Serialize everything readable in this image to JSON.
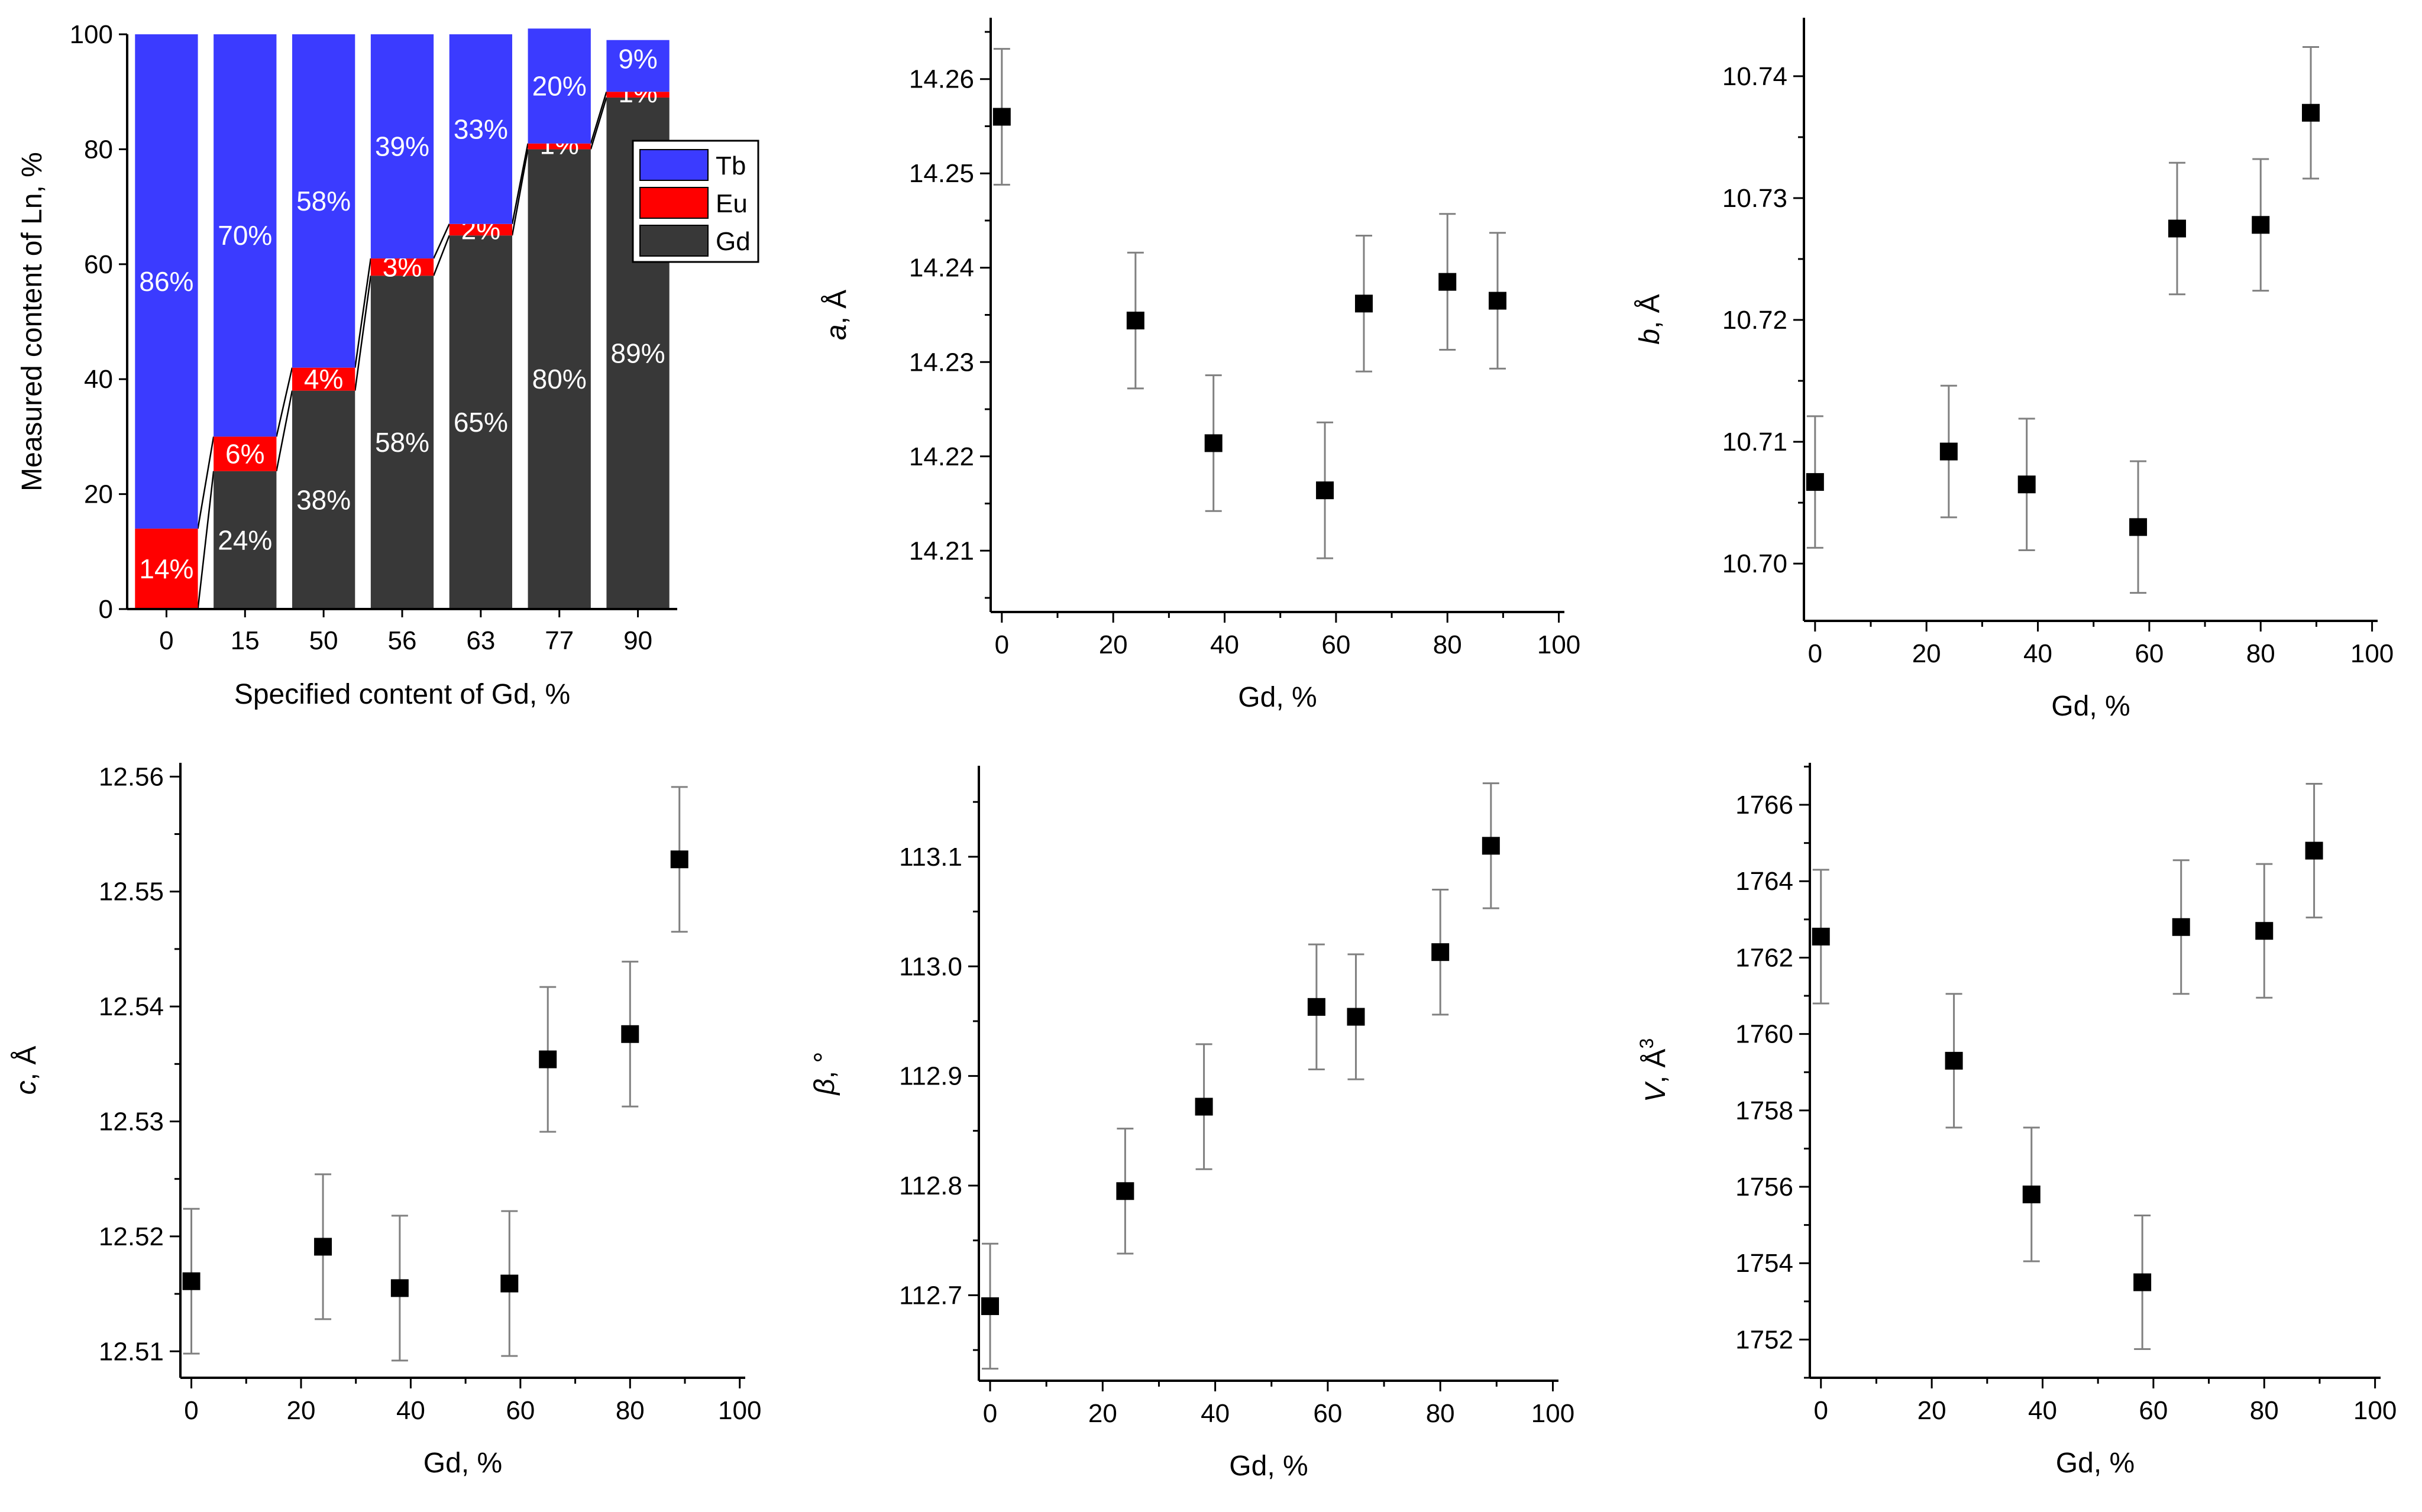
{
  "colors": {
    "tb": "#3b3bff",
    "eu": "#ff0000",
    "gd": "#383838",
    "axis": "#000000",
    "errorbar": "#808080",
    "marker": "#000000"
  },
  "chart_data": [
    {
      "id": "composition",
      "type": "bar",
      "stacked": true,
      "xlabel": "Specified content of Gd, %",
      "ylabel": "Measured content of Ln, %",
      "ylim": [
        0,
        100
      ],
      "yticks": [
        0,
        20,
        40,
        60,
        80,
        100
      ],
      "categories": [
        "0",
        "15",
        "50",
        "56",
        "63",
        "77",
        "90"
      ],
      "series": [
        {
          "name": "Gd",
          "values": [
            0,
            24,
            38,
            58,
            65,
            80,
            89
          ],
          "labels": [
            "",
            "24%",
            "38%",
            "58%",
            "65%",
            "80%",
            "89%"
          ]
        },
        {
          "name": "Eu",
          "values": [
            14,
            6,
            4,
            3,
            2,
            1,
            1
          ],
          "labels": [
            "14%",
            "6%",
            "4%",
            "3%",
            "2%",
            "1%",
            "1%"
          ]
        },
        {
          "name": "Tb",
          "values": [
            86,
            70,
            58,
            39,
            33,
            20,
            9
          ],
          "labels": [
            "86%",
            "70%",
            "58%",
            "39%",
            "33%",
            "20%",
            "9%"
          ]
        }
      ],
      "legend": [
        "Tb",
        "Eu",
        "Gd"
      ],
      "legend_position": "top-right"
    },
    {
      "id": "a",
      "type": "scatter",
      "xlabel": "Gd, %",
      "ylabel_symbol": "a",
      "ylabel_unit": ", Å",
      "xlim": [
        -2,
        101
      ],
      "xticks": [
        0,
        20,
        40,
        60,
        80,
        100
      ],
      "ylim": [
        14.2035,
        14.2665
      ],
      "yticks": [
        14.21,
        14.22,
        14.23,
        14.24,
        14.25,
        14.26
      ],
      "ytick_labels": [
        "14.21",
        "14.22",
        "14.23",
        "14.24",
        "14.25",
        "14.26"
      ],
      "x": [
        0,
        24,
        38,
        58,
        65,
        80,
        89
      ],
      "y": [
        14.256,
        14.2344,
        14.2214,
        14.2164,
        14.2362,
        14.2385,
        14.2365
      ],
      "err": [
        0.0072,
        0.0072,
        0.0072,
        0.0072,
        0.0072,
        0.0072,
        0.0072
      ]
    },
    {
      "id": "b",
      "type": "scatter",
      "xlabel": "Gd, %",
      "ylabel_symbol": "b",
      "ylabel_unit": ", Å",
      "xlim": [
        -2,
        101
      ],
      "xticks": [
        0,
        20,
        40,
        60,
        80,
        100
      ],
      "ylim": [
        10.6953,
        10.7448
      ],
      "yticks": [
        10.7,
        10.71,
        10.72,
        10.73,
        10.74
      ],
      "ytick_labels": [
        "10.70",
        "10.71",
        "10.72",
        "10.73",
        "10.74"
      ],
      "x": [
        0,
        24,
        38,
        58,
        65,
        80,
        89
      ],
      "y": [
        10.7067,
        10.7092,
        10.7065,
        10.703,
        10.7275,
        10.7278,
        10.737
      ],
      "err": [
        0.0054,
        0.0054,
        0.0054,
        0.0054,
        0.0054,
        0.0054,
        0.0054
      ]
    },
    {
      "id": "c",
      "type": "scatter",
      "xlabel": "Gd, %",
      "ylabel_symbol": "c",
      "ylabel_unit": ", Å",
      "xlim": [
        -2,
        101
      ],
      "xticks": [
        0,
        20,
        40,
        60,
        80,
        100
      ],
      "ylim": [
        12.5077,
        12.5612
      ],
      "yticks": [
        12.51,
        12.52,
        12.53,
        12.54,
        12.55,
        12.56
      ],
      "ytick_labels": [
        "12.51",
        "12.52",
        "12.53",
        "12.54",
        "12.55",
        "12.56"
      ],
      "x": [
        0,
        24,
        38,
        58,
        65,
        80,
        89
      ],
      "y": [
        12.5161,
        12.5191,
        12.5155,
        12.5159,
        12.5354,
        12.5376,
        12.5528
      ],
      "err": [
        0.0063,
        0.0063,
        0.0063,
        0.0063,
        0.0063,
        0.0063,
        0.0063
      ]
    },
    {
      "id": "beta",
      "type": "scatter",
      "xlabel": "Gd, %",
      "ylabel_symbol": "β",
      "ylabel_unit": ", °",
      "xlim": [
        -2,
        101
      ],
      "xticks": [
        0,
        20,
        40,
        60,
        80,
        100
      ],
      "ylim": [
        112.622,
        113.183
      ],
      "yticks": [
        112.7,
        112.8,
        112.9,
        113.0,
        113.1
      ],
      "ytick_labels": [
        "112.7",
        "112.8",
        "112.9",
        "113.0",
        "113.1"
      ],
      "x": [
        0,
        24,
        38,
        58,
        65,
        80,
        89
      ],
      "y": [
        112.69,
        112.795,
        112.872,
        112.963,
        112.954,
        113.013,
        113.11
      ],
      "err": [
        0.057,
        0.057,
        0.057,
        0.057,
        0.057,
        0.057,
        0.057
      ]
    },
    {
      "id": "V",
      "type": "scatter",
      "xlabel": "Gd, %",
      "ylabel_symbol": "V",
      "ylabel_unit": ", Å",
      "ylabel_sup": "3",
      "xlim": [
        -2,
        101
      ],
      "xticks": [
        0,
        20,
        40,
        60,
        80,
        100
      ],
      "ylim": [
        1751.0,
        1767.1
      ],
      "yticks": [
        1752,
        1754,
        1756,
        1758,
        1760,
        1762,
        1764,
        1766
      ],
      "ytick_labels": [
        "1752",
        "1754",
        "1756",
        "1758",
        "1760",
        "1762",
        "1764",
        "1766"
      ],
      "x": [
        0,
        24,
        38,
        58,
        65,
        80,
        89
      ],
      "y": [
        1762.55,
        1759.3,
        1755.8,
        1753.5,
        1762.8,
        1762.7,
        1764.8
      ],
      "err": [
        1.75,
        1.75,
        1.75,
        1.75,
        1.75,
        1.75,
        1.75
      ]
    }
  ]
}
